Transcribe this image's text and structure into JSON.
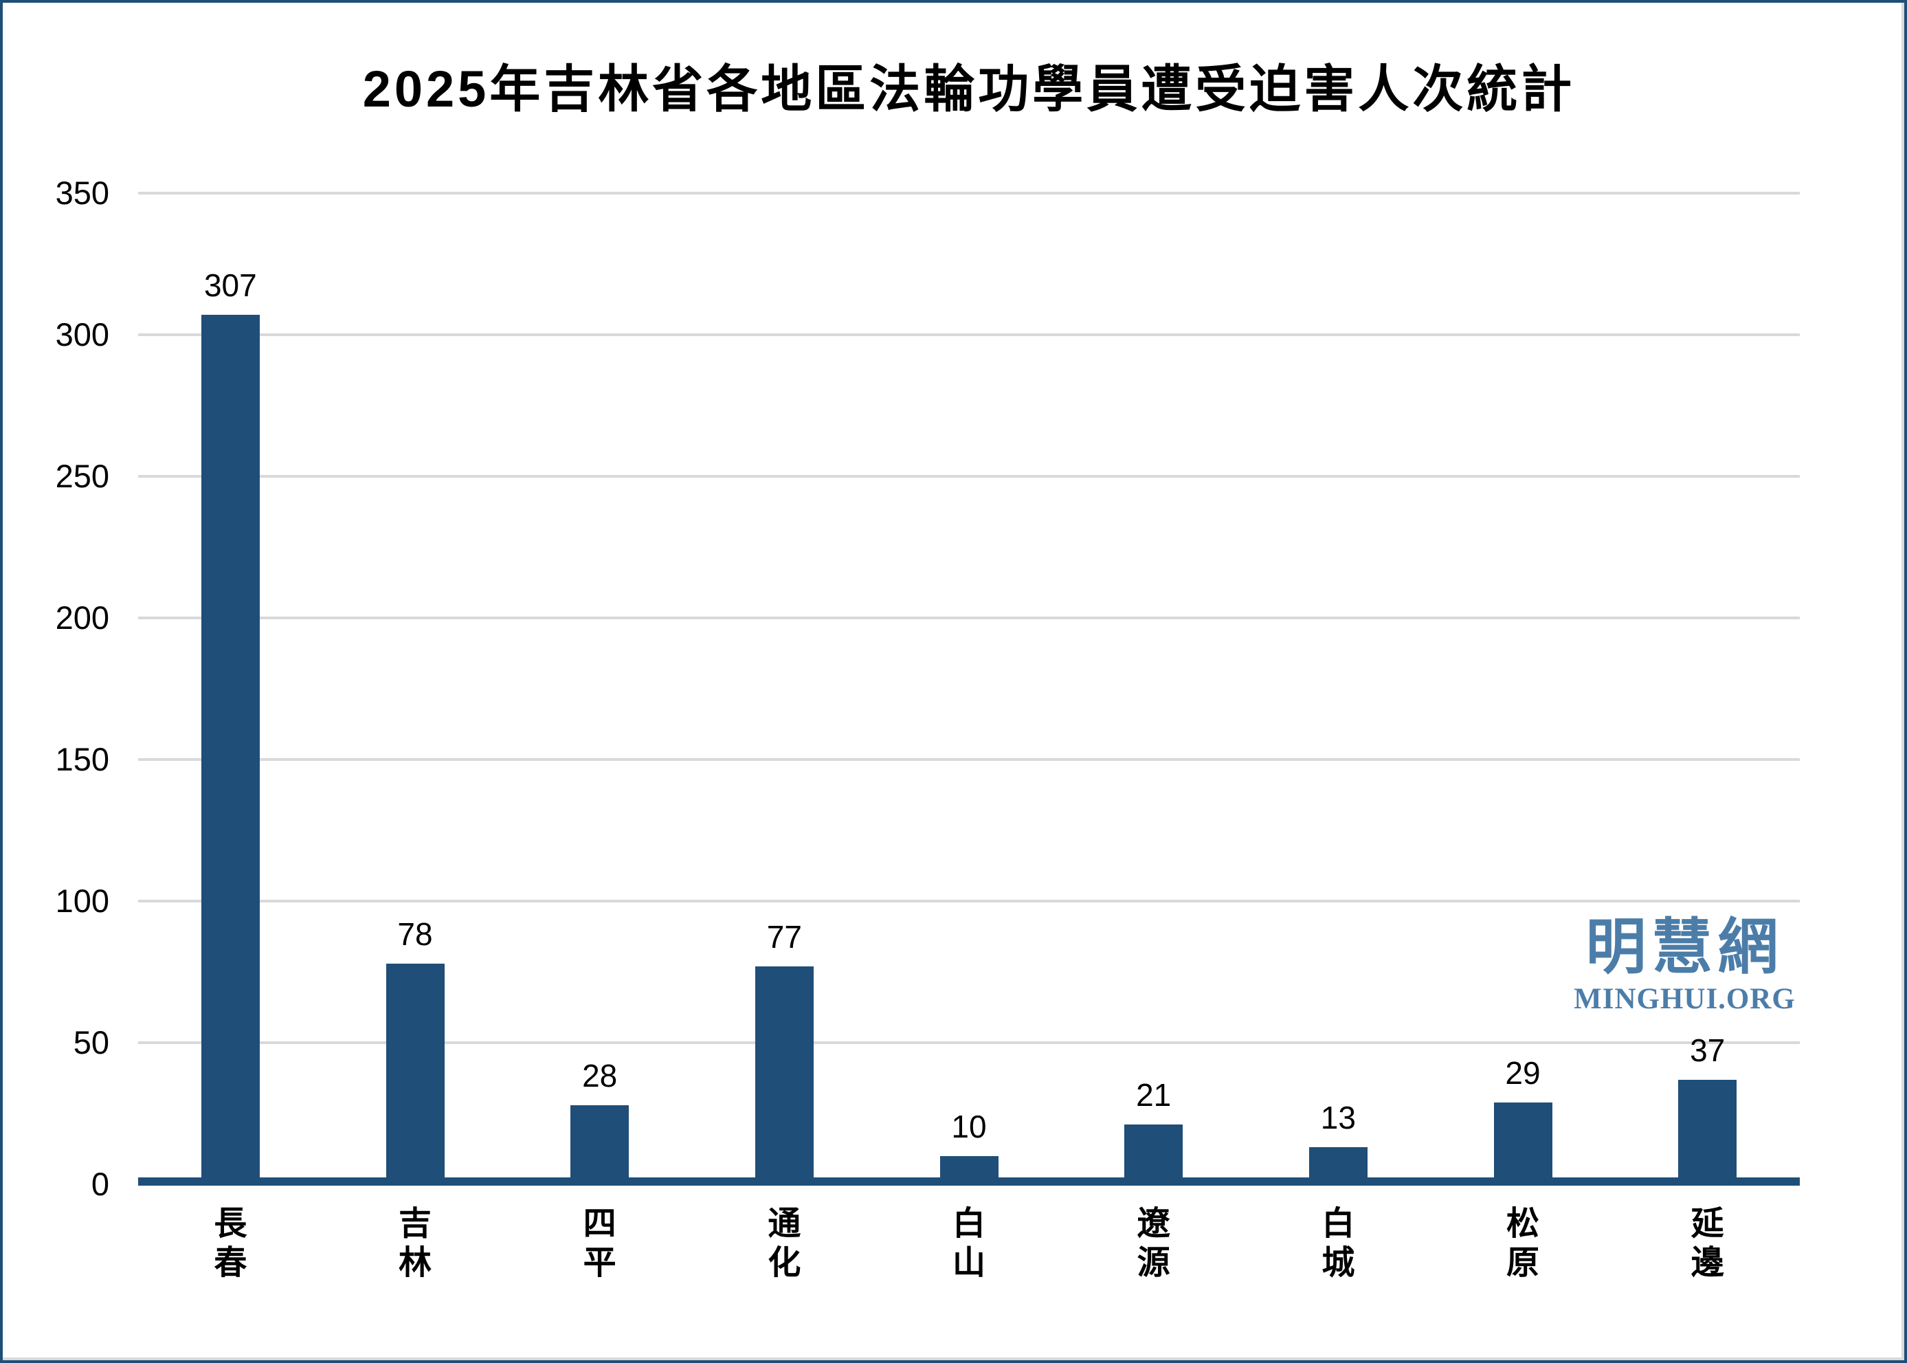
{
  "title": "2025年吉林省各地區法輪功學員遭受迫害人次統計",
  "watermark": {
    "cjk": "明慧網",
    "latin": "MINGHUI.ORG",
    "color": "#4c7da9"
  },
  "colors": {
    "bar": "#1f4e79",
    "axis_line": "#1f4e79",
    "gridline": "#d9d9d9",
    "frame": "#1f4e79",
    "text": "#000000"
  },
  "chart_data": {
    "type": "bar",
    "title": "2025年吉林省各地區法輪功學員遭受迫害人次統計",
    "categories": [
      "長春",
      "吉林",
      "四平",
      "通化",
      "白山",
      "遼源",
      "白城",
      "松原",
      "延邊"
    ],
    "values": [
      307,
      78,
      28,
      77,
      10,
      21,
      13,
      29,
      37
    ],
    "xlabel": "",
    "ylabel": "",
    "ylim": [
      0,
      350
    ],
    "yticks": [
      0,
      50,
      100,
      150,
      200,
      250,
      300,
      350
    ],
    "grid": "horizontal",
    "legend": "none",
    "value_labels": true,
    "bar_color": "#1f4e79",
    "category_label_orientation": "vertical-stacked"
  }
}
